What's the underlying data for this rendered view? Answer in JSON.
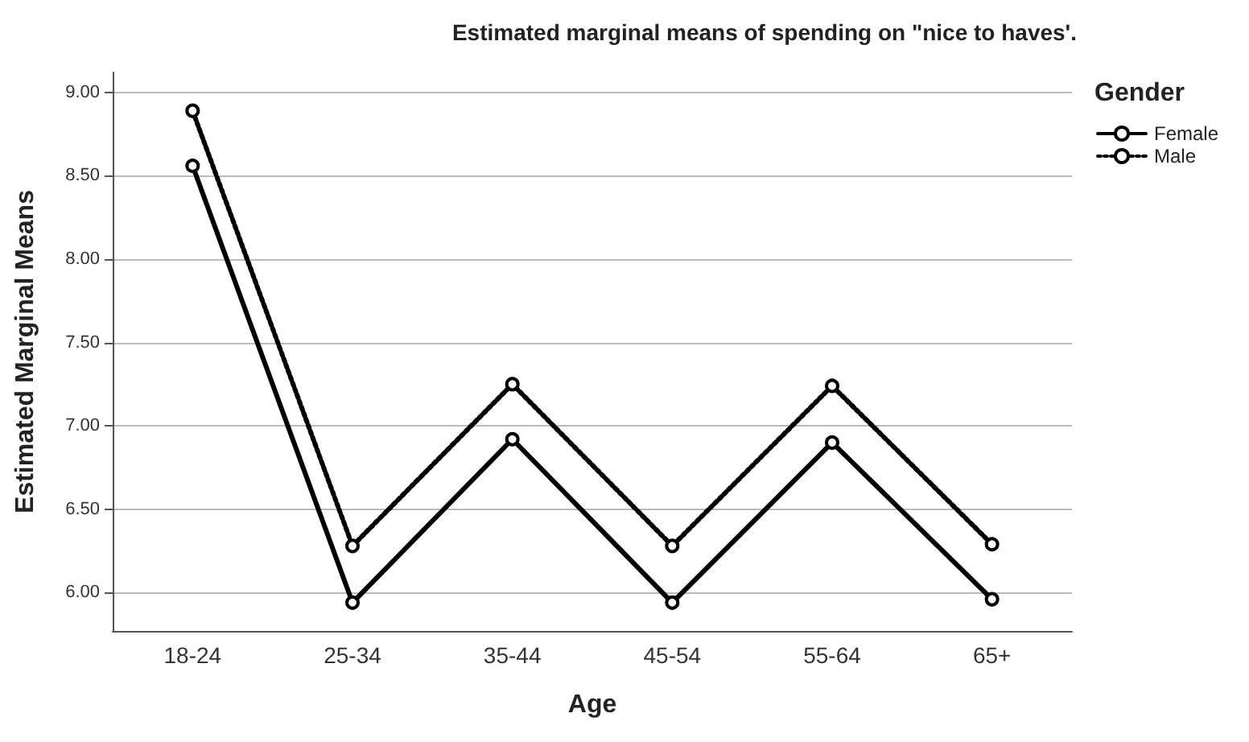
{
  "chart_data": {
    "type": "line",
    "title": "Estimated marginal means of spending on \"nice to haves'.",
    "xlabel": "Age",
    "ylabel": "Estimated Marginal Means",
    "legend_title": "Gender",
    "categories": [
      "18-24",
      "25-34",
      "35-44",
      "45-54",
      "55-64",
      "65+"
    ],
    "series": [
      {
        "name": "Female",
        "color": "#000000",
        "line_style": "solid",
        "values": [
          8.56,
          5.94,
          6.92,
          5.94,
          6.9,
          5.96
        ]
      },
      {
        "name": "Male",
        "color": "#000000",
        "line_style": "dotted",
        "values": [
          8.89,
          6.28,
          7.25,
          6.28,
          7.24,
          6.29
        ]
      }
    ],
    "ylim": [
      5.77,
      9.12
    ],
    "yticks": [
      {
        "value": 6,
        "label": "6.00"
      },
      {
        "value": 6.5,
        "label": "6.50"
      },
      {
        "value": 7,
        "label": "7.00"
      },
      {
        "value": 7.5,
        "label": "7.50"
      },
      {
        "value": 8,
        "label": "8.00"
      },
      {
        "value": 8.5,
        "label": "8.50"
      },
      {
        "value": 9,
        "label": "9.00"
      }
    ],
    "grid": "y",
    "legend": "top right",
    "marker": "circle"
  }
}
